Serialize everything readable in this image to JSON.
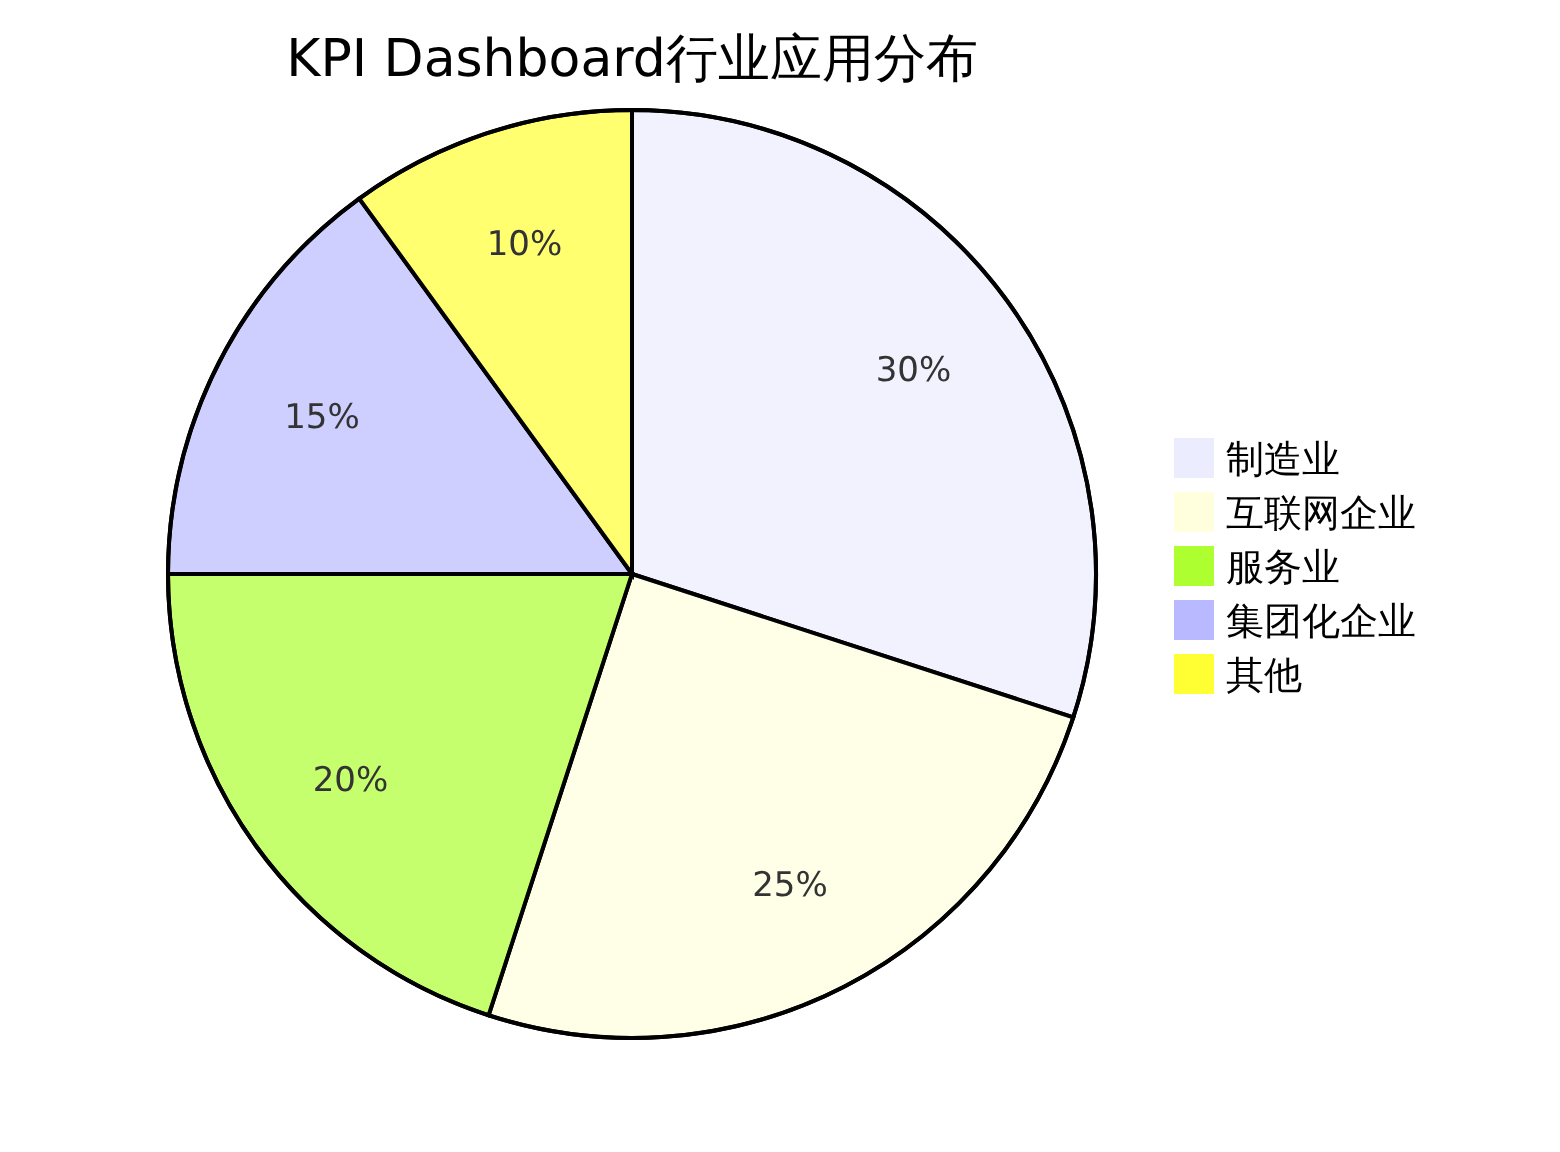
{
  "chart_data": {
    "type": "pie",
    "title": "KPI Dashboard行业应用分布",
    "categories": [
      "制造业",
      "互联网企业",
      "服务业",
      "集团化企业",
      "其他"
    ],
    "values": [
      30,
      25,
      20,
      15,
      10
    ],
    "colors": [
      "#ececff",
      "#ffffde",
      "#adff2f",
      "#b9b9ff",
      "#ffff33"
    ],
    "value_labels": [
      "30%",
      "25%",
      "20%",
      "15%",
      "10%"
    ],
    "legend": "right"
  }
}
